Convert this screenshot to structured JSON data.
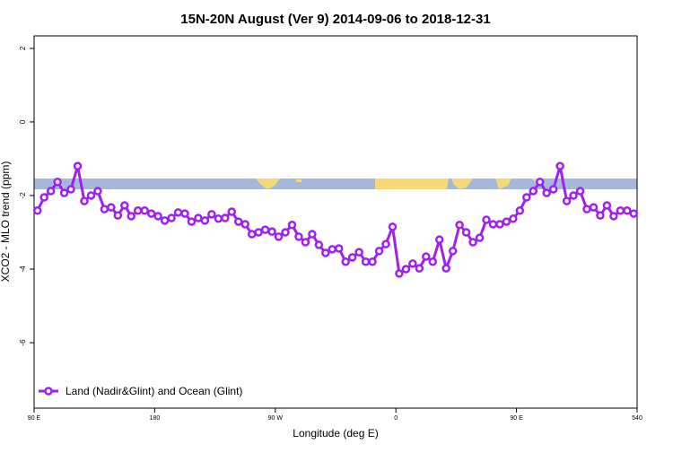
{
  "chart_data": {
    "type": "line",
    "title": "15N-20N August (Ver 9)   2014-09-06 to 2018-12-31",
    "x_label": "Longitude (deg E)",
    "y_label": "XCO2 - MLO trend (ppm)",
    "x": [
      92.5,
      97.5,
      102.5,
      107.5,
      112.5,
      117.5,
      122.5,
      127.5,
      132.5,
      137.5,
      142.5,
      147.5,
      152.5,
      157.5,
      162.5,
      167.5,
      172.5,
      177.5,
      182.5,
      187.5,
      192.5,
      197.5,
      202.5,
      207.5,
      212.5,
      217.5,
      222.5,
      227.5,
      232.5,
      237.5,
      242.5,
      247.5,
      252.5,
      257.5,
      262.5,
      267.5,
      272.5,
      277.5,
      282.5,
      287.5,
      292.5,
      297.5,
      302.5,
      307.5,
      312.5,
      317.5,
      322.5,
      327.5,
      332.5,
      337.5,
      342.5,
      347.5,
      352.5,
      357.5,
      362.5,
      367.5,
      372.5,
      377.5,
      382.5,
      387.5,
      392.5,
      397.5,
      402.5,
      407.5,
      412.5,
      417.5,
      422.5,
      427.5,
      432.5,
      437.5,
      442.5,
      447.5,
      452.5,
      457.5,
      462.5,
      467.5,
      472.5,
      477.5,
      482.5,
      487.5,
      492.5,
      497.5,
      502.5,
      507.5,
      512.5,
      517.5,
      522.5,
      527.5,
      532.5,
      537.5
    ],
    "series": [
      {
        "name": "Land (Nadir&Glint) and Ocean (Glint)",
        "color": "#a020f0",
        "values": [
          -2.41,
          -2.05,
          -1.88,
          -1.63,
          -1.93,
          -1.83,
          -1.2,
          -2.15,
          -2.0,
          -1.88,
          -2.37,
          -2.32,
          -2.54,
          -2.27,
          -2.56,
          -2.41,
          -2.41,
          -2.49,
          -2.56,
          -2.68,
          -2.61,
          -2.46,
          -2.49,
          -2.71,
          -2.61,
          -2.68,
          -2.51,
          -2.63,
          -2.61,
          -2.44,
          -2.71,
          -2.78,
          -3.05,
          -3.0,
          -2.93,
          -2.98,
          -3.12,
          -3.0,
          -2.8,
          -3.12,
          -3.27,
          -3.05,
          -3.34,
          -3.56,
          -3.46,
          -3.44,
          -3.8,
          -3.68,
          -3.54,
          -3.8,
          -3.8,
          -3.51,
          -3.32,
          -2.85,
          -4.12,
          -4.0,
          -3.85,
          -3.98,
          -3.66,
          -3.8,
          -3.2,
          -3.98,
          -3.51,
          -2.8,
          -3.0,
          -3.27,
          -3.15,
          -2.66,
          -2.78,
          -2.78,
          -2.71,
          -2.63,
          -2.41,
          -2.05,
          -1.88,
          -1.63,
          -1.93,
          -1.83,
          -1.2,
          -2.15,
          -2.0,
          -1.88,
          -2.37,
          -2.32,
          -2.54,
          -2.27,
          -2.56,
          -2.41,
          -2.41,
          -2.49
        ]
      }
    ],
    "xlim": [
      90,
      540
    ],
    "xticks": [
      {
        "value": 90,
        "label": "90 E"
      },
      180,
      {
        "value": 270,
        "label": "90 W"
      },
      {
        "value": 360,
        "label": "0"
      },
      {
        "value": 450,
        "label": "90 E"
      },
      540
    ],
    "ylim": [
      -7.78,
      2.34
    ],
    "yticks": [
      2,
      0,
      -2,
      -4,
      -6
    ],
    "legend": "bottom-left"
  }
}
